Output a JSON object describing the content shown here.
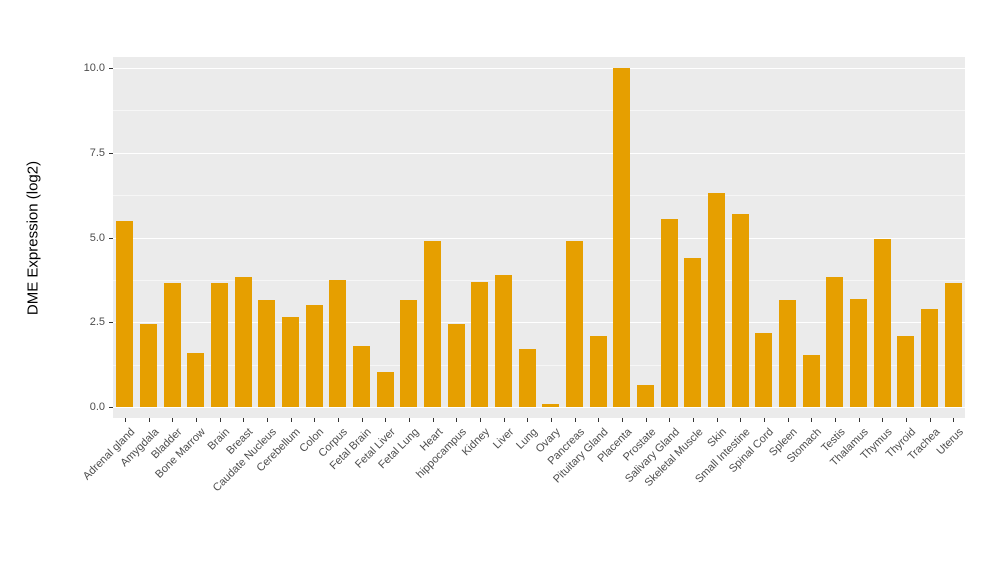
{
  "chart_data": {
    "type": "bar",
    "title": "",
    "xlabel": "",
    "ylabel": "DME Expression (log2)",
    "categories": [
      "Adrenal gland",
      "Amygdala",
      "Bladder",
      "Bone Marrow",
      "Brain",
      "Breast",
      "Caudate Nucleus",
      "Cerebellum",
      "Colon",
      "Corpus",
      "Fetal Brain",
      "Fetal Liver",
      "Fetal Lung",
      "Heart",
      "hippocampus",
      "Kidney",
      "Liver",
      "Lung",
      "Ovary",
      "Pancreas",
      "Pituitary Gland",
      "Placenta",
      "Prostate",
      "Salivary Gland",
      "Skeletal Muscle",
      "Skin",
      "Small Intestine",
      "Spinal Cord",
      "Spleen",
      "Stomach",
      "Testis",
      "Thalamus",
      "Thymus",
      "Thyroid",
      "Trachea",
      "Uterus"
    ],
    "values": [
      5.5,
      2.45,
      3.65,
      1.6,
      3.65,
      3.85,
      3.15,
      2.65,
      3.0,
      3.75,
      1.8,
      1.05,
      3.15,
      4.9,
      2.45,
      3.7,
      3.9,
      1.7,
      0.1,
      4.9,
      2.1,
      10.0,
      0.65,
      5.55,
      4.4,
      6.3,
      5.7,
      2.2,
      3.15,
      1.55,
      3.85,
      3.2,
      4.95,
      2.1,
      2.9,
      3.65
    ],
    "ylim": [
      0,
      10
    ],
    "yticks": [
      0.0,
      2.5,
      5.0,
      7.5,
      10.0
    ],
    "ytick_labels": [
      "0.0",
      "2.5",
      "5.0",
      "7.5",
      "10.0"
    ],
    "minor_ticks": [
      1.25,
      3.75,
      6.25,
      8.75
    ],
    "grid": "horizontal major+minor, white on gray panel",
    "legend": "none",
    "bar_color": "#E69F00",
    "panel_bg": "#EBEBEB",
    "tick_label_color": "#4D4D4D"
  }
}
